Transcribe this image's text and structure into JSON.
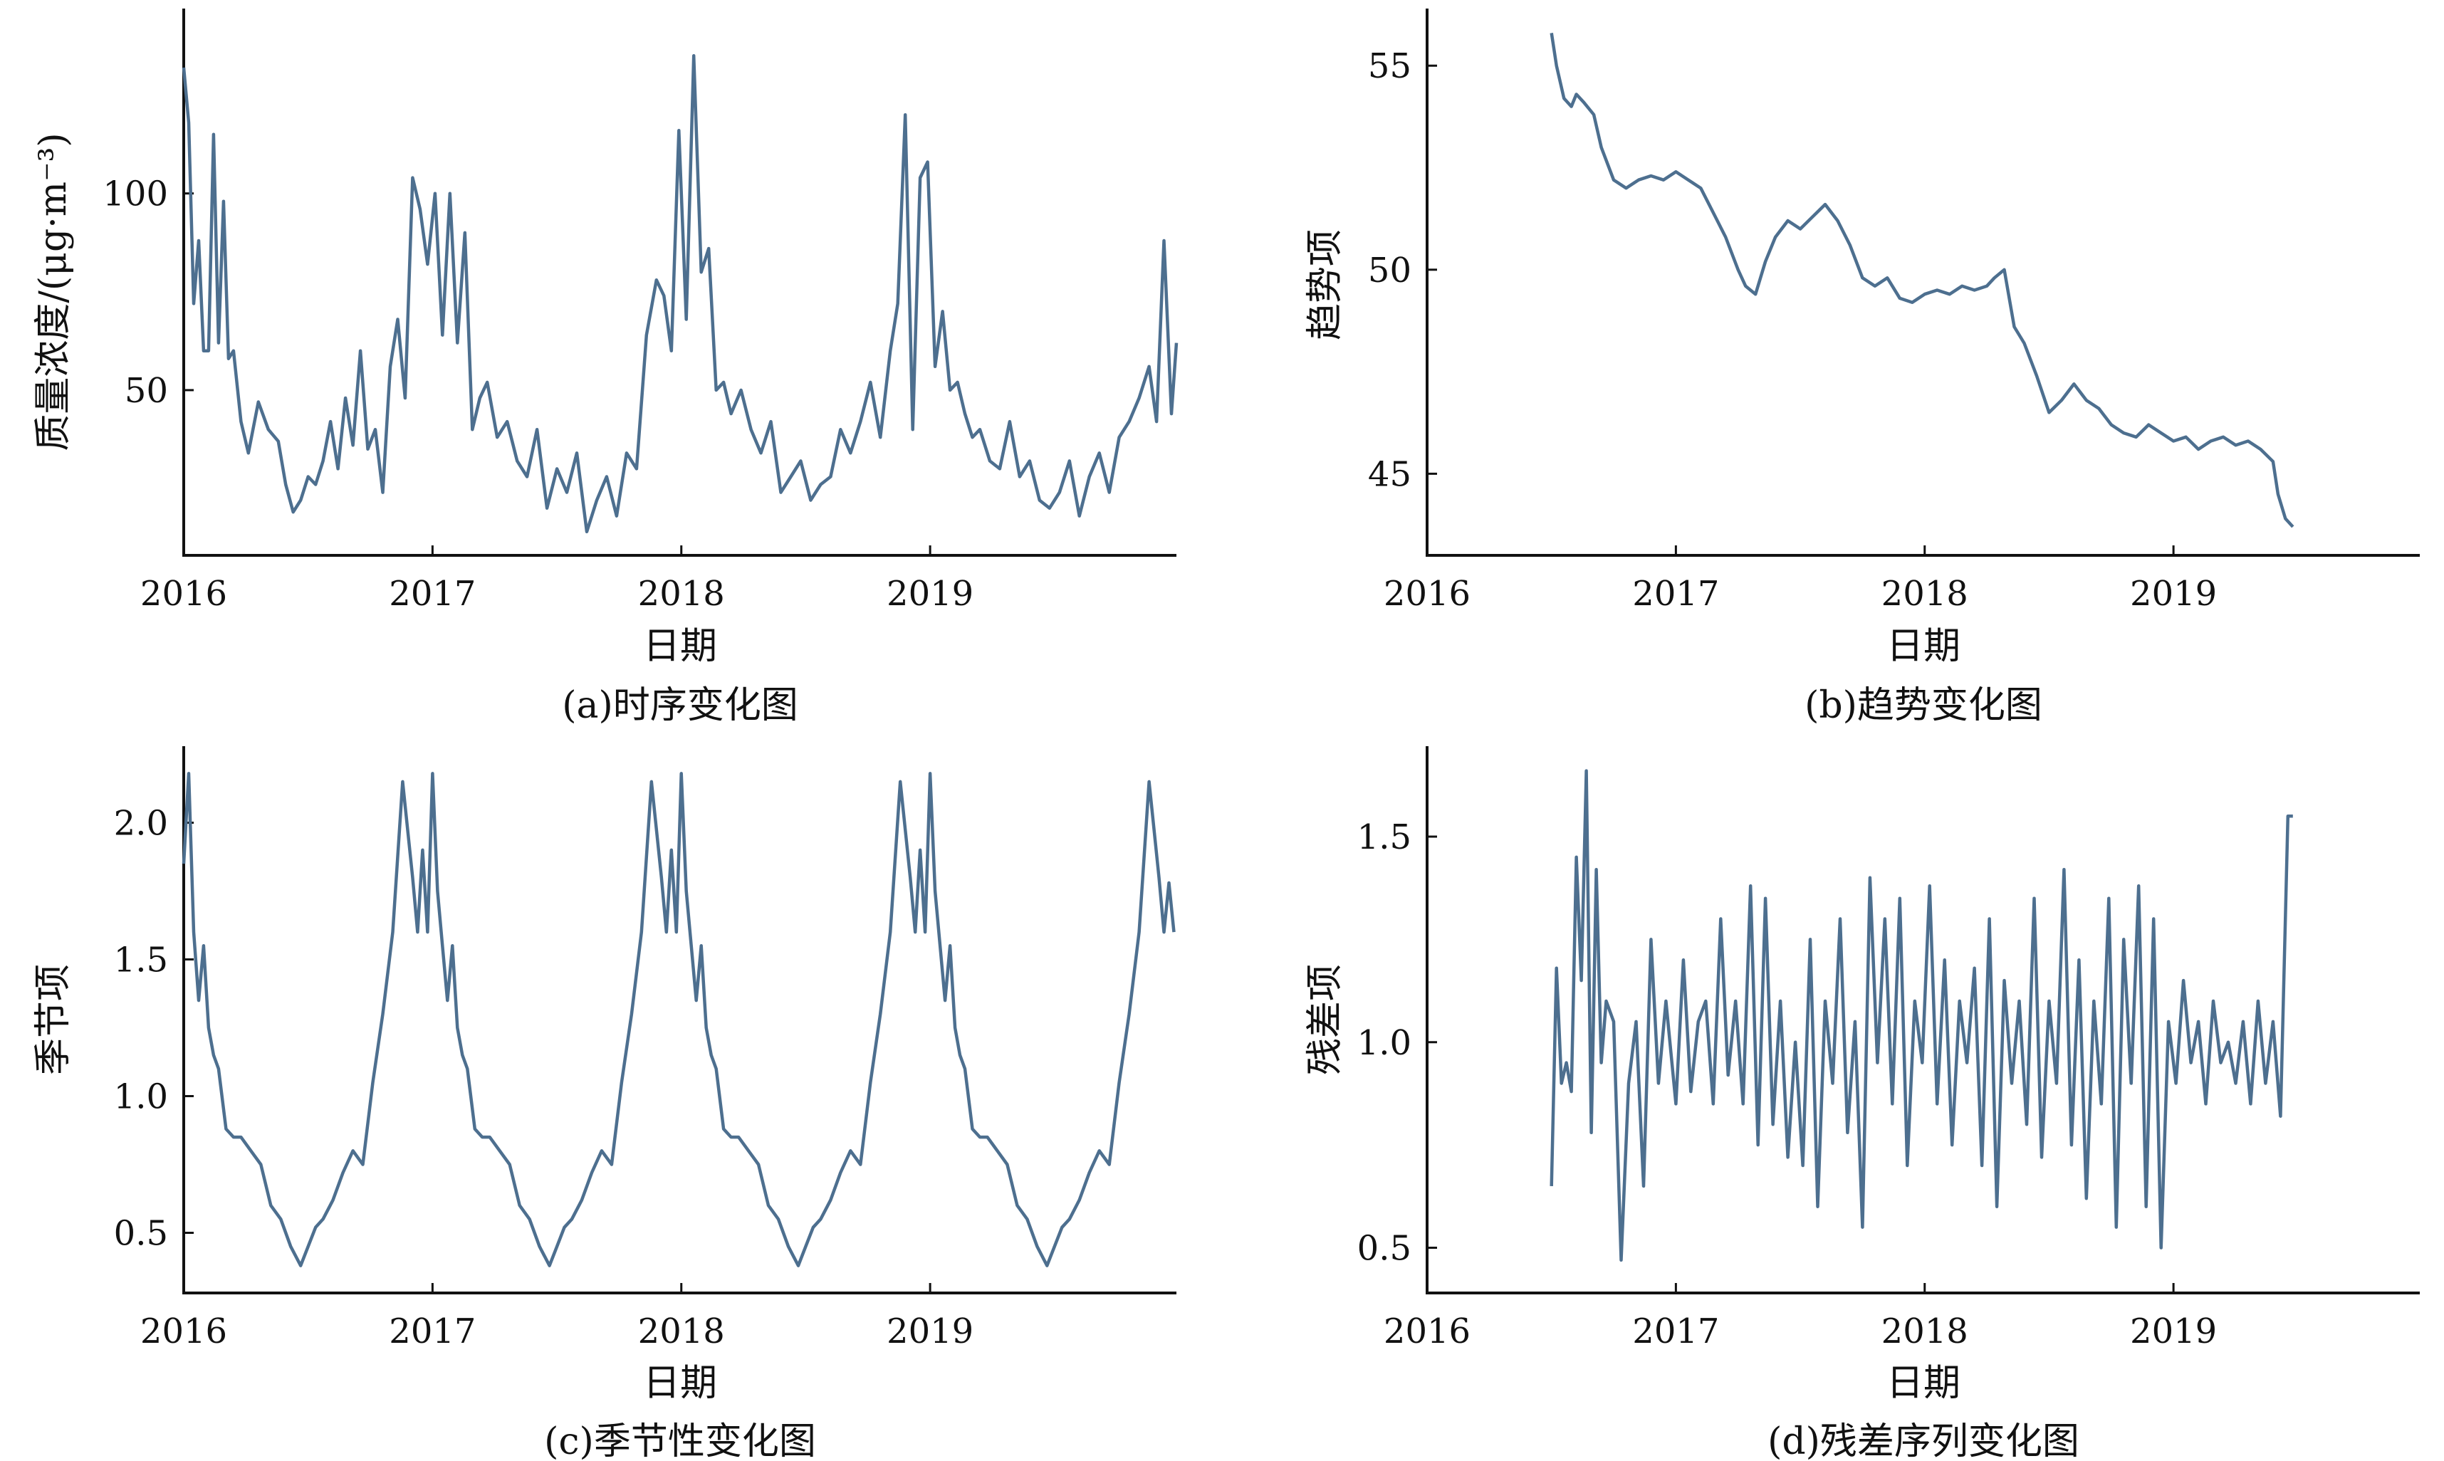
{
  "chart_data": [
    {
      "id": "a",
      "type": "line",
      "caption": "(a)时序变化图",
      "xlabel": "日期",
      "ylabel": "质量浓度/(μg·m⁻³)",
      "xlim": [
        2016.0,
        2019.99
      ],
      "ylim": [
        8,
        147
      ],
      "xticks": [
        2016,
        2017,
        2018,
        2019
      ],
      "yticks": [
        50,
        100
      ],
      "series_color": "#4d6f8f",
      "series": [
        {
          "x": [
            2016.0,
            2016.02,
            2016.04,
            2016.06,
            2016.08,
            2016.1,
            2016.12,
            2016.14,
            2016.16,
            2016.18,
            2016.2,
            2016.23,
            2016.26,
            2016.3,
            2016.34,
            2016.38,
            2016.41,
            2016.44,
            2016.47,
            2016.5,
            2016.53,
            2016.56,
            2016.59,
            2016.62,
            2016.65,
            2016.68,
            2016.71,
            2016.74,
            2016.77,
            2016.8,
            2016.83,
            2016.86,
            2016.89,
            2016.92,
            2016.95,
            2016.98,
            2017.01,
            2017.04,
            2017.07,
            2017.1,
            2017.13,
            2017.16,
            2017.19,
            2017.22,
            2017.26,
            2017.3,
            2017.34,
            2017.38,
            2017.42,
            2017.46,
            2017.5,
            2017.54,
            2017.58,
            2017.62,
            2017.66,
            2017.7,
            2017.74,
            2017.78,
            2017.82,
            2017.86,
            2017.9,
            2017.93,
            2017.96,
            2017.99,
            2018.02,
            2018.05,
            2018.08,
            2018.11,
            2018.14,
            2018.17,
            2018.2,
            2018.24,
            2018.28,
            2018.32,
            2018.36,
            2018.4,
            2018.44,
            2018.48,
            2018.52,
            2018.56,
            2018.6,
            2018.64,
            2018.68,
            2018.72,
            2018.76,
            2018.8,
            2018.84,
            2018.87,
            2018.9,
            2018.93,
            2018.96,
            2018.99,
            2019.02,
            2019.05,
            2019.08,
            2019.11,
            2019.14,
            2019.17,
            2019.2,
            2019.24,
            2019.28,
            2019.32,
            2019.36,
            2019.4,
            2019.44,
            2019.48,
            2019.52,
            2019.56,
            2019.6,
            2019.64,
            2019.68,
            2019.72,
            2019.76,
            2019.8,
            2019.84,
            2019.88,
            2019.91,
            2019.94,
            2019.97,
            2019.99
          ],
          "y": [
            132,
            118,
            72,
            88,
            60,
            60,
            115,
            62,
            98,
            58,
            60,
            42,
            34,
            47,
            40,
            37,
            26,
            19,
            22,
            28,
            26,
            32,
            42,
            30,
            48,
            36,
            60,
            35,
            40,
            24,
            56,
            68,
            48,
            104,
            96,
            82,
            100,
            64,
            100,
            62,
            90,
            40,
            48,
            52,
            38,
            42,
            32,
            28,
            40,
            20,
            30,
            24,
            34,
            14,
            22,
            28,
            18,
            34,
            30,
            64,
            78,
            74,
            60,
            116,
            68,
            135,
            80,
            86,
            50,
            52,
            44,
            50,
            40,
            34,
            42,
            24,
            28,
            32,
            22,
            26,
            28,
            40,
            34,
            42,
            52,
            38,
            60,
            72,
            120,
            40,
            104,
            108,
            56,
            70,
            50,
            52,
            44,
            38,
            40,
            32,
            30,
            42,
            28,
            32,
            22,
            20,
            24,
            32,
            18,
            28,
            34,
            24,
            38,
            42,
            48,
            56,
            42,
            88,
            44,
            62
          ]
        }
      ]
    },
    {
      "id": "b",
      "type": "line",
      "caption": "(b)趋势变化图",
      "xlabel": "日期",
      "ylabel": "趋势项",
      "xlim": [
        2016.0,
        2019.99
      ],
      "ylim": [
        43,
        56.4
      ],
      "xticks": [
        2016,
        2017,
        2018,
        2019
      ],
      "yticks": [
        45,
        50,
        55
      ],
      "series_color": "#4d6f8f",
      "series": [
        {
          "x": [
            2016.5,
            2016.52,
            2016.55,
            2016.58,
            2016.6,
            2016.63,
            2016.67,
            2016.7,
            2016.75,
            2016.8,
            2016.85,
            2016.9,
            2016.95,
            2017.0,
            2017.05,
            2017.1,
            2017.15,
            2017.2,
            2017.25,
            2017.28,
            2017.32,
            2017.36,
            2017.4,
            2017.45,
            2017.5,
            2017.55,
            2017.6,
            2017.65,
            2017.7,
            2017.75,
            2017.8,
            2017.85,
            2017.9,
            2017.95,
            2018.0,
            2018.05,
            2018.1,
            2018.15,
            2018.2,
            2018.25,
            2018.28,
            2018.32,
            2018.36,
            2018.4,
            2018.45,
            2018.5,
            2018.55,
            2018.6,
            2018.65,
            2018.7,
            2018.75,
            2018.8,
            2018.85,
            2018.9,
            2018.95,
            2019.0,
            2019.05,
            2019.1,
            2019.15,
            2019.2,
            2019.25,
            2019.3,
            2019.35,
            2019.4,
            2019.42,
            2019.45,
            2019.48
          ],
          "y": [
            55.8,
            55.0,
            54.2,
            54.0,
            54.3,
            54.1,
            53.8,
            53.0,
            52.2,
            52.0,
            52.2,
            52.3,
            52.2,
            52.4,
            52.2,
            52.0,
            51.4,
            50.8,
            50.0,
            49.6,
            49.4,
            50.2,
            50.8,
            51.2,
            51.0,
            51.3,
            51.6,
            51.2,
            50.6,
            49.8,
            49.6,
            49.8,
            49.3,
            49.2,
            49.4,
            49.5,
            49.4,
            49.6,
            49.5,
            49.6,
            49.8,
            50.0,
            48.6,
            48.2,
            47.4,
            46.5,
            46.8,
            47.2,
            46.8,
            46.6,
            46.2,
            46.0,
            45.9,
            46.2,
            46.0,
            45.8,
            45.9,
            45.6,
            45.8,
            45.9,
            45.7,
            45.8,
            45.6,
            45.3,
            44.5,
            43.9,
            43.7
          ]
        }
      ]
    },
    {
      "id": "c",
      "type": "line",
      "caption": "(c)季节性变化图",
      "xlabel": "日期",
      "ylabel": "季节项",
      "xlim": [
        2016.0,
        2019.99
      ],
      "ylim": [
        0.28,
        2.28
      ],
      "xticks": [
        2016,
        2017,
        2018,
        2019
      ],
      "yticks": [
        0.5,
        1.0,
        1.5,
        2.0
      ],
      "series_color": "#4d6f8f",
      "series": [
        {
          "x": [
            2016.0,
            2016.02,
            2016.04,
            2016.06,
            2016.08,
            2016.1,
            2016.12,
            2016.14,
            2016.17,
            2016.2,
            2016.23,
            2016.27,
            2016.31,
            2016.35,
            2016.39,
            2016.43,
            2016.47,
            2016.5,
            2016.53,
            2016.56,
            2016.6,
            2016.64,
            2016.68,
            2016.72,
            2016.76,
            2016.8,
            2016.84,
            2016.88,
            2016.92,
            2016.94,
            2016.96,
            2016.98,
            2017.0,
            2017.02,
            2017.04,
            2017.06,
            2017.08,
            2017.1,
            2017.12,
            2017.14,
            2017.17,
            2017.2,
            2017.23,
            2017.27,
            2017.31,
            2017.35,
            2017.39,
            2017.43,
            2017.47,
            2017.5,
            2017.53,
            2017.56,
            2017.6,
            2017.64,
            2017.68,
            2017.72,
            2017.76,
            2017.8,
            2017.84,
            2017.88,
            2017.92,
            2017.94,
            2017.96,
            2017.98,
            2018.0,
            2018.02,
            2018.04,
            2018.06,
            2018.08,
            2018.1,
            2018.12,
            2018.14,
            2018.17,
            2018.2,
            2018.23,
            2018.27,
            2018.31,
            2018.35,
            2018.39,
            2018.43,
            2018.47,
            2018.5,
            2018.53,
            2018.56,
            2018.6,
            2018.64,
            2018.68,
            2018.72,
            2018.76,
            2018.8,
            2018.84,
            2018.88,
            2018.92,
            2018.94,
            2018.96,
            2018.98,
            2019.0,
            2019.02,
            2019.04,
            2019.06,
            2019.08,
            2019.1,
            2019.12,
            2019.14,
            2019.17,
            2019.2,
            2019.23,
            2019.27,
            2019.31,
            2019.35,
            2019.39,
            2019.43,
            2019.47,
            2019.5,
            2019.53,
            2019.56,
            2019.6,
            2019.64,
            2019.68,
            2019.72,
            2019.76,
            2019.8,
            2019.84,
            2019.88,
            2019.92,
            2019.94,
            2019.96,
            2019.98
          ],
          "y": [
            1.85,
            2.18,
            1.6,
            1.35,
            1.55,
            1.25,
            1.15,
            1.1,
            0.88,
            0.85,
            0.85,
            0.8,
            0.75,
            0.6,
            0.55,
            0.45,
            0.38,
            0.45,
            0.52,
            0.55,
            0.62,
            0.72,
            0.8,
            0.75,
            1.05,
            1.3,
            1.6,
            2.15,
            1.8,
            1.6,
            1.9,
            1.6,
            2.18,
            1.75,
            1.55,
            1.35,
            1.55,
            1.25,
            1.15,
            1.1,
            0.88,
            0.85,
            0.85,
            0.8,
            0.75,
            0.6,
            0.55,
            0.45,
            0.38,
            0.45,
            0.52,
            0.55,
            0.62,
            0.72,
            0.8,
            0.75,
            1.05,
            1.3,
            1.6,
            2.15,
            1.8,
            1.6,
            1.9,
            1.6,
            2.18,
            1.75,
            1.55,
            1.35,
            1.55,
            1.25,
            1.15,
            1.1,
            0.88,
            0.85,
            0.85,
            0.8,
            0.75,
            0.6,
            0.55,
            0.45,
            0.38,
            0.45,
            0.52,
            0.55,
            0.62,
            0.72,
            0.8,
            0.75,
            1.05,
            1.3,
            1.6,
            2.15,
            1.8,
            1.6,
            1.9,
            1.6,
            2.18,
            1.75,
            1.55,
            1.35,
            1.55,
            1.25,
            1.15,
            1.1,
            0.88,
            0.85,
            0.85,
            0.8,
            0.75,
            0.6,
            0.55,
            0.45,
            0.38,
            0.45,
            0.52,
            0.55,
            0.62,
            0.72,
            0.8,
            0.75,
            1.05,
            1.3,
            1.6,
            2.15,
            1.8,
            1.6,
            1.78,
            1.6
          ]
        }
      ]
    },
    {
      "id": "d",
      "type": "line",
      "caption": "(d)残差序列变化图",
      "xlabel": "日期",
      "ylabel": "残差项",
      "xlim": [
        2016.0,
        2019.99
      ],
      "ylim": [
        0.39,
        1.72
      ],
      "xticks": [
        2016,
        2017,
        2018,
        2019
      ],
      "yticks": [
        0.5,
        1.0,
        1.5
      ],
      "series_color": "#4d6f8f",
      "series": [
        {
          "x": [
            2016.5,
            2016.52,
            2016.54,
            2016.56,
            2016.58,
            2016.6,
            2016.62,
            2016.64,
            2016.66,
            2016.68,
            2016.7,
            2016.72,
            2016.75,
            2016.78,
            2016.81,
            2016.84,
            2016.87,
            2016.9,
            2016.93,
            2016.96,
            2017.0,
            2017.03,
            2017.06,
            2017.09,
            2017.12,
            2017.15,
            2017.18,
            2017.21,
            2017.24,
            2017.27,
            2017.3,
            2017.33,
            2017.36,
            2017.39,
            2017.42,
            2017.45,
            2017.48,
            2017.51,
            2017.54,
            2017.57,
            2017.6,
            2017.63,
            2017.66,
            2017.69,
            2017.72,
            2017.75,
            2017.78,
            2017.81,
            2017.84,
            2017.87,
            2017.9,
            2017.93,
            2017.96,
            2017.99,
            2018.02,
            2018.05,
            2018.08,
            2018.11,
            2018.14,
            2018.17,
            2018.2,
            2018.23,
            2018.26,
            2018.29,
            2018.32,
            2018.35,
            2018.38,
            2018.41,
            2018.44,
            2018.47,
            2018.5,
            2018.53,
            2018.56,
            2018.59,
            2018.62,
            2018.65,
            2018.68,
            2018.71,
            2018.74,
            2018.77,
            2018.8,
            2018.83,
            2018.86,
            2018.89,
            2018.92,
            2018.95,
            2018.98,
            2019.01,
            2019.04,
            2019.07,
            2019.1,
            2019.13,
            2019.16,
            2019.19,
            2019.22,
            2019.25,
            2019.28,
            2019.31,
            2019.34,
            2019.37,
            2019.4,
            2019.43,
            2019.46,
            2019.48
          ],
          "y": [
            0.65,
            1.18,
            0.9,
            0.95,
            0.88,
            1.45,
            1.15,
            1.66,
            0.78,
            1.42,
            0.95,
            1.1,
            1.05,
            0.47,
            0.9,
            1.05,
            0.65,
            1.25,
            0.9,
            1.1,
            0.85,
            1.2,
            0.88,
            1.05,
            1.1,
            0.85,
            1.3,
            0.92,
            1.1,
            0.85,
            1.38,
            0.75,
            1.35,
            0.8,
            1.1,
            0.72,
            1.0,
            0.7,
            1.25,
            0.6,
            1.1,
            0.9,
            1.3,
            0.78,
            1.05,
            0.55,
            1.4,
            0.95,
            1.3,
            0.85,
            1.35,
            0.7,
            1.1,
            0.95,
            1.38,
            0.85,
            1.2,
            0.75,
            1.1,
            0.95,
            1.18,
            0.7,
            1.3,
            0.6,
            1.15,
            0.9,
            1.1,
            0.8,
            1.35,
            0.72,
            1.1,
            0.9,
            1.42,
            0.75,
            1.2,
            0.62,
            1.1,
            0.85,
            1.35,
            0.55,
            1.25,
            0.9,
            1.38,
            0.6,
            1.3,
            0.5,
            1.05,
            0.9,
            1.15,
            0.95,
            1.05,
            0.85,
            1.1,
            0.95,
            1.0,
            0.9,
            1.05,
            0.85,
            1.1,
            0.9,
            1.05,
            0.82,
            1.55,
            1.55
          ]
        }
      ]
    }
  ]
}
